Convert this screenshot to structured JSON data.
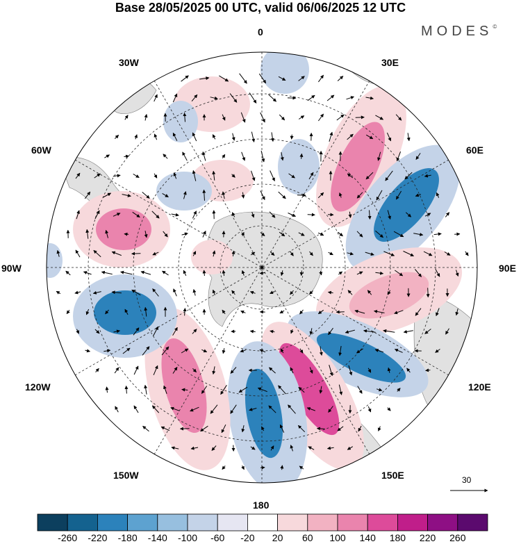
{
  "title": "Base 28/05/2025 00 UTC, valid 06/06/2025 12 UTC",
  "brand": "MODES",
  "brand_mark": "©",
  "longitude_labels": {
    "n": "0",
    "ne30": "30E",
    "ne60": "60E",
    "e": "90E",
    "se120": "120E",
    "se150": "150E",
    "s": "180",
    "sw150": "150W",
    "sw120": "120W",
    "w": "90W",
    "nw60": "60W",
    "nw30": "30W"
  },
  "vector_scale": "30",
  "colorbar": {
    "labels": [
      "-260",
      "-220",
      "-180",
      "-140",
      "-100",
      "-60",
      "-20",
      "20",
      "60",
      "100",
      "140",
      "180",
      "220",
      "260"
    ],
    "colors": [
      "#0c3f5e",
      "#14628f",
      "#2c82bb",
      "#5da2d0",
      "#97bfdf",
      "#c4d3e8",
      "#e6e6f2",
      "#ffffff",
      "#f7d9dc",
      "#f2b2c2",
      "#ea84ad",
      "#dd4b9a",
      "#c01e8a",
      "#8e0f84",
      "#5b0a6e"
    ]
  },
  "anomalies": [
    {
      "type": "positive",
      "color": "#e04fa0",
      "level": 180
    },
    {
      "type": "negative",
      "color": "#1f6fa8",
      "level": -220
    }
  ]
}
